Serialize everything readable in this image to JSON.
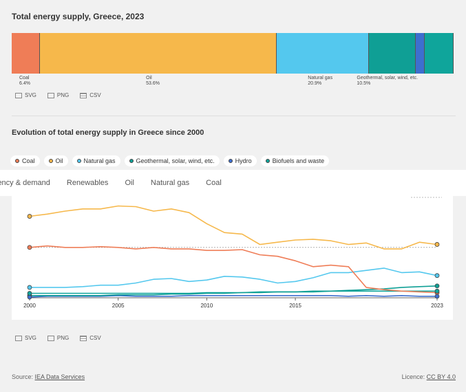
{
  "header": {
    "title": "Total energy supply, Greece, 2023"
  },
  "downloads": {
    "svg": "SVG",
    "png": "PNG",
    "csv": "CSV"
  },
  "evolution": {
    "title": "Evolution of total energy supply in Greece since 2000"
  },
  "tabs": [
    "iency & demand",
    "Renewables",
    "Oil",
    "Natural gas",
    "Coal"
  ],
  "footer": {
    "source_prefix": "Source: ",
    "source_link": "IEA Data Services",
    "licence_prefix": "Licence: ",
    "licence_link": "CC BY 4.0"
  },
  "colors": {
    "coal": "#ef7d57",
    "oil": "#f6b84b",
    "gas": "#54c8ee",
    "geothermal": "#0f9f95",
    "hydro": "#3d6fcf",
    "biofuels": "#0fa59b"
  },
  "chart_data": [
    {
      "type": "bar",
      "title": "Total energy supply, Greece, 2023",
      "stacked": true,
      "segments": [
        {
          "name": "Coal",
          "pct_label": "6.4%",
          "value": 6.4,
          "color": "#ef7d57",
          "labeled": true
        },
        {
          "name": "Oil",
          "pct_label": "53.6%",
          "value": 53.6,
          "color": "#f6b84b",
          "labeled": true
        },
        {
          "name": "Natural gas",
          "pct_label": "20.9%",
          "value": 20.9,
          "color": "#54c8ee",
          "labeled": true
        },
        {
          "name": "Geothermal, solar, wind, etc.",
          "pct_label": "10.5%",
          "value": 10.5,
          "color": "#0f9f95",
          "labeled": true
        },
        {
          "name": "Hydro",
          "pct_label": "",
          "value": 2.0,
          "color": "#3d6fcf",
          "labeled": false
        },
        {
          "name": "Biofuels and waste",
          "pct_label": "",
          "value": 6.6,
          "color": "#0fa59b",
          "labeled": false
        }
      ]
    },
    {
      "type": "line",
      "title": "Evolution of total energy supply in Greece since 2000",
      "x_ticks": [
        "2000",
        "2005",
        "2010",
        "2015",
        "2023"
      ],
      "x": [
        2000,
        2001,
        2002,
        2003,
        2004,
        2005,
        2006,
        2007,
        2008,
        2009,
        2010,
        2011,
        2012,
        2013,
        2014,
        2015,
        2016,
        2017,
        2018,
        2019,
        2020,
        2021,
        2022,
        2023
      ],
      "ylim": [
        0,
        130
      ],
      "reference_line": 68,
      "series": [
        {
          "name": "Coal",
          "color": "#ef7d57",
          "values": [
            68,
            70,
            68,
            68,
            69,
            68,
            66,
            68,
            66,
            66,
            64,
            64,
            65,
            58,
            56,
            50,
            42,
            44,
            42,
            14,
            11,
            9,
            8,
            7
          ]
        },
        {
          "name": "Oil",
          "color": "#f6b84b",
          "values": [
            110,
            113,
            117,
            120,
            120,
            124,
            123,
            117,
            120,
            115,
            100,
            88,
            86,
            72,
            75,
            78,
            79,
            77,
            72,
            74,
            66,
            66,
            75,
            72
          ]
        },
        {
          "name": "Natural gas",
          "color": "#54c8ee",
          "values": [
            14,
            14,
            14,
            15,
            17,
            17,
            20,
            25,
            26,
            22,
            24,
            29,
            28,
            25,
            20,
            22,
            27,
            34,
            34,
            37,
            40,
            34,
            35,
            30
          ]
        },
        {
          "name": "Geothermal, solar, wind, etc.",
          "color": "#0f9f95",
          "values": [
            3,
            3,
            3,
            3,
            3,
            4,
            4,
            4,
            5,
            5,
            6,
            6,
            7,
            7,
            8,
            8,
            9,
            9,
            10,
            11,
            12,
            14,
            15,
            16
          ]
        },
        {
          "name": "Hydro",
          "color": "#3d6fcf",
          "values": [
            1,
            2,
            2,
            2,
            2,
            3,
            2,
            2,
            2,
            3,
            3,
            3,
            3,
            3,
            3,
            3,
            3,
            3,
            2,
            3,
            2,
            3,
            2,
            2
          ]
        },
        {
          "name": "Biofuels and waste",
          "color": "#0fa59b",
          "values": [
            6,
            6,
            6,
            6,
            6,
            6,
            6,
            6,
            6,
            6,
            7,
            7,
            7,
            8,
            8,
            8,
            8,
            9,
            9,
            9,
            9,
            9,
            9,
            9
          ]
        }
      ]
    }
  ]
}
